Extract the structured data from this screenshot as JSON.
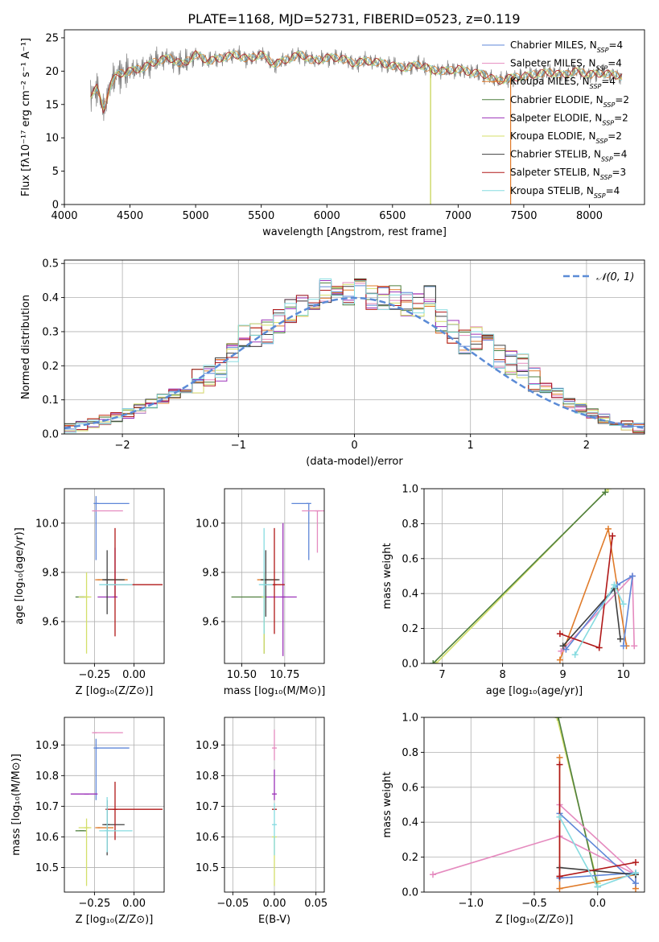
{
  "figure": {
    "title": "PLATE=1168, MJD=52731, FIBERID=0523, z=0.119"
  },
  "legend_entries": [
    {
      "label": "Chabrier MILES, N",
      "sub": "SSP",
      "tail": "=4",
      "color": "#5f87d8"
    },
    {
      "label": "Salpeter MILES, N",
      "sub": "SSP",
      "tail": "=4",
      "color": "#e58bbf"
    },
    {
      "label": "Kroupa MILES, N",
      "sub": "SSP",
      "tail": "=4",
      "color": "#e07b2a"
    },
    {
      "label": "Chabrier ELODIE, N",
      "sub": "SSP",
      "tail": "=2",
      "color": "#4f7f3f"
    },
    {
      "label": "Salpeter ELODIE, N",
      "sub": "SSP",
      "tail": "=2",
      "color": "#9b32b8"
    },
    {
      "label": "Kroupa ELODIE, N",
      "sub": "SSP",
      "tail": "=2",
      "color": "#d4df6a"
    },
    {
      "label": "Chabrier STELIB, N",
      "sub": "SSP",
      "tail": "=4",
      "color": "#404040"
    },
    {
      "label": "Salpeter STELIB, N",
      "sub": "SSP",
      "tail": "=3",
      "color": "#b01818"
    },
    {
      "label": "Kroupa STELIB, N",
      "sub": "SSP",
      "tail": "=4",
      "color": "#86dbe0"
    }
  ],
  "chart_data": [
    {
      "id": "spectrum",
      "type": "line",
      "xlabel": "wavelength [Angstrom, rest frame]",
      "ylabel": "Flux [fλ10⁻¹⁷ erg cm⁻² s⁻¹ A⁻¹]",
      "xlim": [
        4000,
        8420
      ],
      "ylim": [
        0,
        26.2
      ],
      "xticks": [
        4000,
        4500,
        5000,
        5500,
        6000,
        6500,
        7000,
        7500,
        8000
      ],
      "yticks": [
        0,
        5,
        10,
        15,
        20,
        25
      ],
      "series": [
        {
          "name": "data",
          "color": "#808080",
          "x": [
            4200,
            4250,
            4300,
            4350,
            4400,
            4500,
            4600,
            4700,
            4800,
            4900,
            5000,
            5100,
            5200,
            5300,
            5400,
            5500,
            5600,
            5700,
            5800,
            5900,
            6000,
            6100,
            6200,
            6300,
            6400,
            6500,
            6600,
            6700,
            6800,
            6900,
            7000,
            7100,
            7200,
            7300,
            7400,
            7500,
            7600,
            7700,
            7800,
            7900,
            8000,
            8100,
            8200,
            8250
          ],
          "y": [
            16.5,
            17.5,
            14,
            18,
            19.5,
            20,
            20.5,
            21.5,
            22,
            21,
            22.5,
            21.5,
            22,
            22.5,
            21.8,
            22.5,
            21,
            21.8,
            22.5,
            21.5,
            22,
            22,
            21.2,
            21.5,
            21.3,
            20.8,
            20.5,
            21,
            20.2,
            20,
            20.3,
            19.8,
            19.5,
            18.5,
            19,
            19.2,
            19.6,
            19.8,
            19.4,
            20,
            19.5,
            19.7,
            19.4,
            19.2
          ]
        }
      ]
    },
    {
      "id": "residuals",
      "type": "histogram",
      "xlabel": "(data-model)/error",
      "ylabel": "Normed distribution",
      "xlim": [
        -2.5,
        2.5
      ],
      "ylim": [
        0,
        0.51
      ],
      "xticks": [
        -2,
        -1,
        0,
        1,
        2
      ],
      "yticks": [
        0.0,
        0.1,
        0.2,
        0.3,
        0.4,
        0.5
      ],
      "legend": "𝒩(0, 1)",
      "bin_edges": [
        -2.5,
        -2.4,
        -2.3,
        -2.2,
        -2.1,
        -2.0,
        -1.9,
        -1.8,
        -1.7,
        -1.6,
        -1.5,
        -1.4,
        -1.3,
        -1.2,
        -1.1,
        -1.0,
        -0.9,
        -0.8,
        -0.7,
        -0.6,
        -0.5,
        -0.4,
        -0.3,
        -0.2,
        -0.1,
        0.0,
        0.1,
        0.2,
        0.3,
        0.4,
        0.5,
        0.6,
        0.7,
        0.8,
        0.9,
        1.0,
        1.1,
        1.2,
        1.3,
        1.4,
        1.5,
        1.6,
        1.7,
        1.8,
        1.9,
        2.0,
        2.1,
        2.2,
        2.3,
        2.4,
        2.5
      ],
      "densities": [
        0.018,
        0.023,
        0.031,
        0.042,
        0.05,
        0.06,
        0.074,
        0.089,
        0.104,
        0.118,
        0.135,
        0.155,
        0.17,
        0.19,
        0.23,
        0.285,
        0.29,
        0.3,
        0.33,
        0.36,
        0.38,
        0.4,
        0.42,
        0.42,
        0.41,
        0.42,
        0.4,
        0.4,
        0.4,
        0.38,
        0.38,
        0.4,
        0.33,
        0.3,
        0.27,
        0.28,
        0.27,
        0.225,
        0.21,
        0.2,
        0.16,
        0.135,
        0.12,
        0.09,
        0.075,
        0.06,
        0.045,
        0.035,
        0.025,
        0.018
      ]
    },
    {
      "id": "z-age",
      "type": "scatter",
      "xlabel": "Z [log₁₀(Z/Z⊙)]",
      "ylabel": "age  [log₁₀(age/yr)]",
      "xlim": [
        -0.44,
        0.19
      ],
      "ylim": [
        9.43,
        10.14
      ],
      "xticks": [
        -0.25,
        0.0
      ],
      "yticks": [
        9.6,
        9.8,
        10.0
      ],
      "points": [
        {
          "x": -0.24,
          "y": 10.08,
          "xerr": [
            0.0,
            0.21
          ],
          "yerr": [
            0.23,
            0.03
          ],
          "color": "#5f87d8"
        },
        {
          "x": -0.25,
          "y": 10.05,
          "xerr": [
            0.0,
            0.18
          ],
          "yerr": [
            0.0,
            0.0
          ],
          "color": "#e58bbf"
        },
        {
          "x": -0.23,
          "y": 9.77,
          "xerr": [
            0.0,
            0.19
          ],
          "yerr": [
            0.0,
            0.0
          ],
          "color": "#e07b2a"
        },
        {
          "x": -0.33,
          "y": 9.7,
          "xerr": [
            0.04,
            0.03
          ],
          "yerr": [
            0.0,
            0.0
          ],
          "color": "#4f7f3f"
        },
        {
          "x": -0.12,
          "y": 9.7,
          "xerr": [
            0.11,
            0.0
          ],
          "yerr": [
            0.0,
            0.2
          ],
          "color": "#9b32b8"
        },
        {
          "x": -0.3,
          "y": 9.7,
          "xerr": [
            0.05,
            0.03
          ],
          "yerr": [
            0.23,
            0.1
          ],
          "color": "#d4df6a"
        },
        {
          "x": -0.17,
          "y": 9.77,
          "xerr": [
            0.03,
            0.11
          ],
          "yerr": [
            0.14,
            0.12
          ],
          "color": "#404040"
        },
        {
          "x": -0.12,
          "y": 9.75,
          "xerr": [
            0.06,
            0.3
          ],
          "yerr": [
            0.21,
            0.23
          ],
          "color": "#b01818"
        },
        {
          "x": -0.17,
          "y": 9.75,
          "xerr": [
            0.05,
            0.16
          ],
          "yerr": [
            0.0,
            0.0
          ],
          "color": "#86dbe0"
        }
      ]
    },
    {
      "id": "mass-age",
      "type": "scatter",
      "xlabel": "mass [log₁₀(M/M⊙)]",
      "ylabel": "",
      "xlim": [
        10.4,
        10.98
      ],
      "ylim": [
        9.43,
        10.14
      ],
      "xticks": [
        10.5,
        10.75
      ],
      "yticks": [
        9.6,
        9.8,
        10.0
      ],
      "points": [
        {
          "x": 10.89,
          "y": 10.08,
          "xerr": [
            0.1,
            0.0
          ],
          "yerr": [
            0.23,
            0.0
          ],
          "color": "#5f87d8"
        },
        {
          "x": 10.94,
          "y": 10.05,
          "xerr": [
            0.09,
            0.04
          ],
          "yerr": [
            0.17,
            0.0
          ],
          "color": "#e58bbf"
        },
        {
          "x": 10.63,
          "y": 9.77,
          "xerr": [
            0.04,
            0.08
          ],
          "yerr": [
            0.0,
            0.0
          ],
          "color": "#e07b2a"
        },
        {
          "x": 10.63,
          "y": 9.7,
          "xerr": [
            0.19,
            0.0
          ],
          "yerr": [
            0.23,
            0.1
          ],
          "color": "#4f7f3f"
        },
        {
          "x": 10.74,
          "y": 9.7,
          "xerr": [
            0.1,
            0.08
          ],
          "yerr": [
            0.24,
            0.3
          ],
          "color": "#9b32b8"
        },
        {
          "x": 10.63,
          "y": 9.7,
          "xerr": [
            0.0,
            0.0
          ],
          "yerr": [
            0.23,
            0.1
          ],
          "color": "#d4df6a"
        },
        {
          "x": 10.64,
          "y": 9.77,
          "xerr": [
            0.03,
            0.08
          ],
          "yerr": [
            0.15,
            0.12
          ],
          "color": "#404040"
        },
        {
          "x": 10.69,
          "y": 9.75,
          "xerr": [
            0.06,
            0.06
          ],
          "yerr": [
            0.2,
            0.23
          ],
          "color": "#b01818"
        },
        {
          "x": 10.63,
          "y": 9.75,
          "xerr": [
            0.03,
            0.05
          ],
          "yerr": [
            0.2,
            0.23
          ],
          "color": "#86dbe0"
        }
      ]
    },
    {
      "id": "age-weight",
      "type": "line",
      "xlabel": "age  [log₁₀(age/yr)]",
      "ylabel": "mass weight",
      "xlim": [
        6.7,
        10.35
      ],
      "ylim": [
        0,
        1.0
      ],
      "xticks": [
        7,
        8,
        9,
        10
      ],
      "yticks": [
        0.0,
        0.2,
        0.4,
        0.6,
        0.8,
        1.0
      ],
      "series": [
        {
          "color": "#d4df6a",
          "x": [
            6.9,
            9.75
          ],
          "y": [
            0.0,
            1.0
          ]
        },
        {
          "color": "#4f7f3f",
          "x": [
            6.85,
            9.7
          ],
          "y": [
            0.0,
            0.98
          ]
        },
        {
          "color": "#e07b2a",
          "x": [
            8.95,
            9.75,
            10.05
          ],
          "y": [
            0.02,
            0.77,
            0.1
          ]
        },
        {
          "color": "#e58bbf",
          "x": [
            8.97,
            10.15,
            10.18
          ],
          "y": [
            0.07,
            0.5,
            0.1
          ]
        },
        {
          "color": "#5f87d8",
          "x": [
            9.05,
            9.9,
            10.15,
            10.0
          ],
          "y": [
            0.08,
            0.45,
            0.5,
            0.1
          ]
        },
        {
          "color": "#404040",
          "x": [
            9.0,
            9.85,
            9.95
          ],
          "y": [
            0.1,
            0.43,
            0.14
          ]
        },
        {
          "color": "#b01818",
          "x": [
            8.95,
            9.6,
            9.82
          ],
          "y": [
            0.17,
            0.09,
            0.73
          ]
        },
        {
          "color": "#86dbe0",
          "x": [
            9.2,
            9.85,
            10.0
          ],
          "y": [
            0.05,
            0.45,
            0.34
          ]
        }
      ]
    },
    {
      "id": "z-mass",
      "type": "scatter",
      "xlabel": "Z [log₁₀(Z/Z⊙)]",
      "ylabel": "mass [log₁₀(M/M⊙)]",
      "xlim": [
        -0.44,
        0.19
      ],
      "ylim": [
        10.42,
        10.99
      ],
      "xticks": [
        -0.25,
        0.0
      ],
      "yticks": [
        10.5,
        10.6,
        10.7,
        10.8,
        10.9
      ],
      "points": [
        {
          "x": -0.24,
          "y": 10.89,
          "xerr": [
            0.0,
            0.21
          ],
          "yerr": [
            0.17,
            0.03
          ],
          "color": "#5f87d8"
        },
        {
          "x": -0.25,
          "y": 10.94,
          "xerr": [
            0.0,
            0.18
          ],
          "yerr": [
            0.0,
            0.0
          ],
          "color": "#e58bbf"
        },
        {
          "x": -0.23,
          "y": 10.63,
          "xerr": [
            0.0,
            0.1
          ],
          "yerr": [
            0.0,
            0.0
          ],
          "color": "#e07b2a"
        },
        {
          "x": -0.33,
          "y": 10.62,
          "xerr": [
            0.04,
            0.03
          ],
          "yerr": [
            0.0,
            0.0
          ],
          "color": "#4f7f3f"
        },
        {
          "x": -0.3,
          "y": 10.74,
          "xerr": [
            0.1,
            0.07
          ],
          "yerr": [
            0.0,
            0.0
          ],
          "color": "#9b32b8"
        },
        {
          "x": -0.3,
          "y": 10.63,
          "xerr": [
            0.05,
            0.03
          ],
          "yerr": [
            0.19,
            0.03
          ],
          "color": "#d4df6a"
        },
        {
          "x": -0.17,
          "y": 10.64,
          "xerr": [
            0.03,
            0.11
          ],
          "yerr": [
            0.1,
            0.08
          ],
          "color": "#404040"
        },
        {
          "x": -0.12,
          "y": 10.69,
          "xerr": [
            0.06,
            0.3
          ],
          "yerr": [
            0.1,
            0.09
          ],
          "color": "#b01818"
        },
        {
          "x": -0.17,
          "y": 10.62,
          "xerr": [
            0.05,
            0.16
          ],
          "yerr": [
            0.07,
            0.11
          ],
          "color": "#86dbe0"
        }
      ]
    },
    {
      "id": "ebv-mass",
      "type": "scatter",
      "xlabel": "E(B-V)",
      "ylabel": "",
      "xlim": [
        -0.06,
        0.06
      ],
      "ylim": [
        10.42,
        10.99
      ],
      "xticks": [
        -0.05,
        0.0,
        0.05
      ],
      "yticks": [
        10.5,
        10.6,
        10.7,
        10.8,
        10.9
      ],
      "points": [
        {
          "x": 0.0,
          "y": 10.89,
          "xerr": [
            0.0,
            0.0
          ],
          "yerr": [
            0.04,
            0.06
          ],
          "color": "#e58bbf"
        },
        {
          "x": 0.0,
          "y": 10.74,
          "xerr": [
            0.0,
            0.0
          ],
          "yerr": [
            0.02,
            0.08
          ],
          "color": "#9b32b8"
        },
        {
          "x": 0.0,
          "y": 10.69,
          "xerr": [
            0.0,
            0.0
          ],
          "yerr": [
            0.0,
            0.0
          ],
          "color": "#b01818"
        },
        {
          "x": 0.0,
          "y": 10.6,
          "xerr": [
            0.0,
            0.0
          ],
          "yerr": [
            0.16,
            0.0
          ],
          "color": "#d4df6a"
        },
        {
          "x": 0.0,
          "y": 10.64,
          "xerr": [
            0.0,
            0.0
          ],
          "yerr": [
            0.1,
            0.07
          ],
          "color": "#86dbe0"
        }
      ]
    },
    {
      "id": "z-weight",
      "type": "line",
      "xlabel": "Z [log₁₀(Z/Z⊙)]",
      "ylabel": "mass weight",
      "xlim": [
        -1.37,
        0.37
      ],
      "ylim": [
        0,
        1.0
      ],
      "xticks": [
        -1.0,
        -0.5,
        0.0
      ],
      "yticks": [
        0.0,
        0.2,
        0.4,
        0.6,
        0.8,
        1.0
      ],
      "series": [
        {
          "color": "#d4df6a",
          "x": [
            -0.32,
            0.0
          ],
          "y": [
            1.0,
            0.05
          ]
        },
        {
          "color": "#4f7f3f",
          "x": [
            -0.31,
            0.0
          ],
          "y": [
            1.0,
            0.03
          ]
        },
        {
          "color": "#e07b2a",
          "x": [
            -0.3,
            -0.3,
            0.3,
            0.3
          ],
          "y": [
            0.77,
            0.02,
            0.1,
            0.02
          ]
        },
        {
          "color": "#e58bbf",
          "x": [
            -1.3,
            -0.3,
            0.3,
            -0.3
          ],
          "y": [
            0.1,
            0.32,
            0.1,
            0.5
          ]
        },
        {
          "color": "#5f87d8",
          "x": [
            -0.3,
            0.3,
            0.3,
            -0.3
          ],
          "y": [
            0.45,
            0.05,
            0.11,
            0.08
          ]
        },
        {
          "color": "#404040",
          "x": [
            -0.3,
            0.3,
            0.3
          ],
          "y": [
            0.14,
            0.1,
            0.1
          ]
        },
        {
          "color": "#b01818",
          "x": [
            -0.3,
            -0.3,
            0.3,
            -0.3
          ],
          "y": [
            0.73,
            0.09,
            0.17,
            0.09
          ]
        },
        {
          "color": "#86dbe0",
          "x": [
            -0.3,
            0.0,
            0.3
          ],
          "y": [
            0.43,
            0.03,
            0.11
          ]
        }
      ]
    }
  ]
}
